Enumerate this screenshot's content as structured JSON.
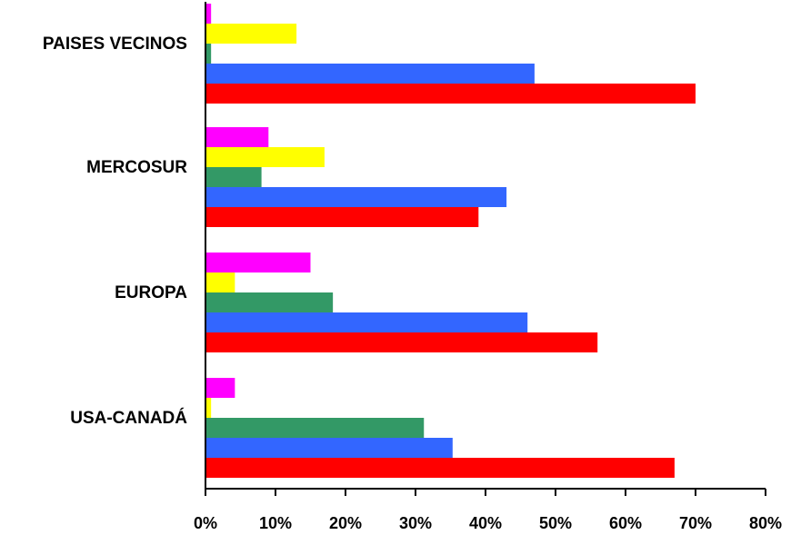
{
  "chart_data": {
    "type": "bar",
    "orientation": "horizontal",
    "categories": [
      "PAISES VECINOS",
      "MERCOSUR",
      "EUROPA",
      "USA-CANADÁ"
    ],
    "series": [
      {
        "color": "#ff00ff",
        "values": [
          0.8,
          9,
          15,
          4.2
        ]
      },
      {
        "color": "#ffff00",
        "values": [
          13,
          17,
          4.2,
          0.8
        ]
      },
      {
        "color": "#339966",
        "values": [
          0.8,
          8,
          18.2,
          31.2
        ]
      },
      {
        "color": "#3366ff",
        "values": [
          47,
          43,
          46,
          35.3
        ]
      },
      {
        "color": "#ff0000",
        "values": [
          70,
          39,
          56,
          67
        ]
      }
    ],
    "xlim": [
      0,
      80
    ],
    "xticks": [
      0,
      10,
      20,
      30,
      40,
      50,
      60,
      70,
      80
    ],
    "xtick_labels": [
      "0%",
      "10%",
      "20%",
      "30%",
      "40%",
      "50%",
      "60%",
      "70%",
      "80%"
    ],
    "grid": false,
    "legend": "none"
  }
}
